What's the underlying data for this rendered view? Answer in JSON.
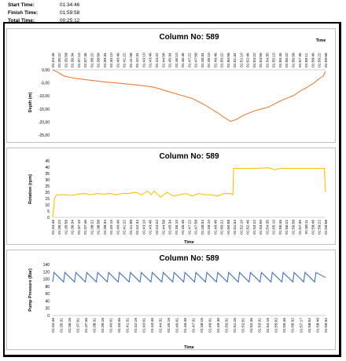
{
  "header": {
    "start_label": "Start Time:",
    "start_value": "01:34:46",
    "finish_label": "Finish Time:",
    "finish_value": "01:59:58",
    "total_label": "Total Time:",
    "total_value": "00:25:12"
  },
  "chart_data": [
    {
      "type": "line",
      "title": "Column No: 589",
      "xlabel": "Time",
      "ylabel": "Depth (m)",
      "ylim": [
        -25,
        0
      ],
      "yticks": [
        "0,00",
        "-5,00",
        "-10,00",
        "-15,00",
        "-20,00",
        "-25,00"
      ],
      "x_axis_position": "top",
      "grid": false,
      "color": "#ED7D31",
      "xticks": [
        "01:34:46",
        "01:35:22",
        "01:35:58",
        "01:36:34",
        "01:37:10",
        "01:37:46",
        "01:38:22",
        "01:38:58",
        "01:39:34",
        "01:40:10",
        "01:40:46",
        "01:41:22",
        "01:41:58",
        "01:42:34",
        "01:43:10",
        "01:43:46",
        "01:44:22",
        "01:44:58",
        "01:45:34",
        "01:46:10",
        "01:46:46",
        "01:47:22",
        "01:47:58",
        "01:48:34",
        "01:49:10",
        "01:49:46",
        "01:50:22",
        "01:50:58",
        "01:51:34",
        "01:52:10",
        "01:52:46",
        "01:53:22",
        "01:53:59",
        "01:54:35",
        "01:55:10",
        "01:55:46",
        "01:56:22",
        "01:56:58",
        "01:57:35",
        "01:58:11",
        "01:58:46",
        "01:59:22",
        "01:59:58"
      ],
      "x": [
        0,
        0.5,
        1,
        1.5,
        2,
        3,
        4,
        6,
        8,
        10,
        12,
        14,
        16,
        18,
        20,
        22,
        24,
        26,
        27,
        28,
        29,
        30,
        32,
        34,
        35,
        36,
        37,
        38,
        39,
        40,
        41,
        42,
        42.6,
        42.8,
        43
      ],
      "values": [
        0,
        -0.5,
        -1.2,
        -2.0,
        -2.5,
        -3.0,
        -3.4,
        -4.0,
        -4.6,
        -5.0,
        -5.5,
        -6.0,
        -6.7,
        -8.2,
        -9.6,
        -11.0,
        -13.5,
        -16.5,
        -18.2,
        -19.8,
        -19.0,
        -17.5,
        -15.6,
        -14.3,
        -13.0,
        -11.8,
        -10.8,
        -9.8,
        -8.2,
        -6.8,
        -5.3,
        -3.4,
        -2.5,
        -1.5,
        -0.5
      ]
    },
    {
      "type": "line",
      "title": "Column No: 589",
      "xlabel": "Time",
      "ylabel": "Rotation (rpm)",
      "ylim": [
        0,
        45
      ],
      "yticks": [
        "0",
        "5",
        "10",
        "15",
        "20",
        "25",
        "30",
        "35",
        "40",
        "45"
      ],
      "grid": false,
      "color": "#FFC000",
      "xticks": [
        "01:34:46",
        "01:35:22",
        "01:35:58",
        "01:36:34",
        "01:37:10",
        "01:37:46",
        "01:38:22",
        "01:38:58",
        "01:39:34",
        "01:40:10",
        "01:40:46",
        "01:41:22",
        "01:41:58",
        "01:42:34",
        "01:43:10",
        "01:43:46",
        "01:44:22",
        "01:44:58",
        "01:45:34",
        "01:46:10",
        "01:46:46",
        "01:47:22",
        "01:47:58",
        "01:48:34",
        "01:49:10",
        "01:49:46",
        "01:50:22",
        "01:50:58",
        "01:51:34",
        "01:52:10",
        "01:52:46",
        "01:53:22",
        "01:53:59",
        "01:54:35",
        "01:55:10",
        "01:55:46",
        "01:56:22",
        "01:56:58",
        "01:57:35",
        "01:58:11",
        "01:58:46",
        "01:59:22",
        "01:59:58"
      ],
      "x": [
        0,
        0.3,
        0.6,
        1,
        2,
        3,
        4,
        5,
        6,
        7,
        8,
        9,
        10,
        11,
        12,
        13,
        14,
        15,
        15.5,
        16,
        17,
        18,
        19,
        20,
        21,
        22,
        23,
        24,
        25,
        26,
        27,
        28,
        28.4,
        28.5,
        30,
        32,
        34,
        35,
        36,
        38,
        40,
        42,
        42.8,
        43
      ],
      "values": [
        0,
        15,
        18,
        18,
        18,
        17.5,
        18.5,
        19,
        18,
        19,
        18.5,
        19,
        18,
        19,
        19,
        20,
        18,
        21,
        18,
        21,
        16,
        20,
        17,
        18,
        19,
        17,
        19,
        18,
        18,
        17,
        19,
        19,
        18,
        39,
        39,
        39,
        39.5,
        38,
        39,
        39,
        39,
        39,
        39,
        20
      ]
    },
    {
      "type": "line",
      "title": "Column No: 589",
      "xlabel": "Time",
      "ylabel": "Pump Pressure (Bar)",
      "ylim": [
        0,
        140
      ],
      "yticks": [
        "0",
        "20",
        "40",
        "60",
        "80",
        "100",
        "120",
        "140"
      ],
      "grid": false,
      "color": "#4472C4",
      "pattern": "sawtooth",
      "cycles": 25,
      "range": [
        92,
        118
      ],
      "xticks": [
        "01:34:46",
        "01:35:31",
        "01:36:16",
        "01:37:01",
        "01:37:46",
        "01:38:31",
        "01:39:16",
        "01:40:01",
        "01:40:46",
        "01:41:31",
        "01:42:16",
        "01:43:01",
        "01:43:46",
        "01:44:31",
        "01:45:16",
        "01:46:01",
        "01:46:46",
        "01:47:31",
        "01:48:16",
        "01:49:01",
        "01:49:46",
        "01:50:31",
        "01:51:16",
        "01:52:01",
        "01:52:46",
        "01:53:31",
        "01:54:16",
        "01:55:02",
        "01:55:46",
        "01:56:32",
        "01:57:17",
        "01:58:02",
        "01:58:46",
        "01:59:32"
      ]
    }
  ]
}
